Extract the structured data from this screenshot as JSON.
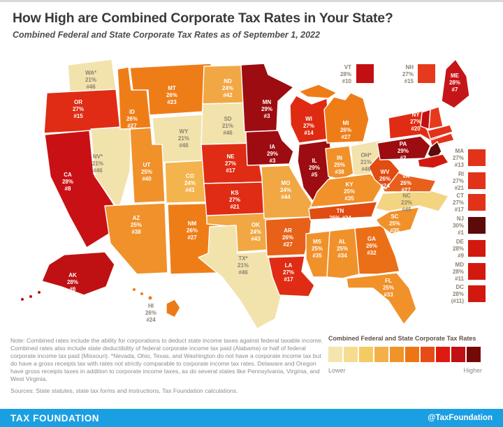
{
  "header": {
    "title": "How High are Combined Corporate Tax Rates in Your State?",
    "subtitle": "Combined Federal and State Corporate Tax Rates as of September 1, 2022"
  },
  "chart_data": {
    "type": "choropleth",
    "title": "Combined Federal and State Corporate Tax Rates as of September 1, 2022",
    "unit": "combined corporate tax rate (percent) and national rank",
    "states": [
      {
        "abbr": "WA",
        "display": "WA*",
        "rate": "21%",
        "rank": "#46",
        "fill": "#F2E2AC",
        "text": "dark"
      },
      {
        "abbr": "OR",
        "display": "OR",
        "rate": "27%",
        "rank": "#15",
        "fill": "#E02C14",
        "text": "light"
      },
      {
        "abbr": "CA",
        "display": "CA",
        "rate": "28%",
        "rank": "#8",
        "fill": "#C91115",
        "text": "light"
      },
      {
        "abbr": "NV",
        "display": "NV*",
        "rate": "21%",
        "rank": "#46",
        "fill": "#F2E2AC",
        "text": "dark"
      },
      {
        "abbr": "ID",
        "display": "ID",
        "rate": "26%",
        "rank": "#27",
        "fill": "#EE7D18",
        "text": "light"
      },
      {
        "abbr": "MT",
        "display": "MT",
        "rate": "26%",
        "rank": "#23",
        "fill": "#EE7D18",
        "text": "light"
      },
      {
        "abbr": "WY",
        "display": "WY",
        "rate": "21%",
        "rank": "#46",
        "fill": "#F2E2AC",
        "text": "dark"
      },
      {
        "abbr": "UT",
        "display": "UT",
        "rate": "25%",
        "rank": "#40",
        "fill": "#F0912A",
        "text": "light"
      },
      {
        "abbr": "CO",
        "display": "CO",
        "rate": "24%",
        "rank": "#41",
        "fill": "#F4B44D",
        "text": "light"
      },
      {
        "abbr": "AZ",
        "display": "AZ",
        "rate": "25%",
        "rank": "#38",
        "fill": "#F0912A",
        "text": "light"
      },
      {
        "abbr": "NM",
        "display": "NM",
        "rate": "26%",
        "rank": "#27",
        "fill": "#EE7D18",
        "text": "light"
      },
      {
        "abbr": "ND",
        "display": "ND",
        "rate": "24%",
        "rank": "#42",
        "fill": "#F1A743",
        "text": "light"
      },
      {
        "abbr": "SD",
        "display": "SD",
        "rate": "21%",
        "rank": "#46",
        "fill": "#F2E2AC",
        "text": "dark"
      },
      {
        "abbr": "NE",
        "display": "NE",
        "rate": "27%",
        "rank": "#17",
        "fill": "#E02C14",
        "text": "light"
      },
      {
        "abbr": "KS",
        "display": "KS",
        "rate": "27%",
        "rank": "#21",
        "fill": "#E02C14",
        "text": "light"
      },
      {
        "abbr": "OK",
        "display": "OK",
        "rate": "24%",
        "rank": "#43",
        "fill": "#F1A743",
        "text": "light"
      },
      {
        "abbr": "TX",
        "display": "TX*",
        "rate": "21%",
        "rank": "#46",
        "fill": "#F2E2AC",
        "text": "dark"
      },
      {
        "abbr": "MN",
        "display": "MN",
        "rate": "29%",
        "rank": "#3",
        "fill": "#9C0C10",
        "text": "light"
      },
      {
        "abbr": "IA",
        "display": "IA",
        "rate": "29%",
        "rank": "#3",
        "fill": "#9C0C10",
        "text": "light"
      },
      {
        "abbr": "MO",
        "display": "MO",
        "rate": "24%",
        "rank": "#44",
        "fill": "#F1A743",
        "text": "light"
      },
      {
        "abbr": "AR",
        "display": "AR",
        "rate": "26%",
        "rank": "#27",
        "fill": "#E76119",
        "text": "light"
      },
      {
        "abbr": "LA",
        "display": "LA",
        "rate": "27%",
        "rank": "#17",
        "fill": "#E02C14",
        "text": "light"
      },
      {
        "abbr": "WI",
        "display": "WI",
        "rate": "27%",
        "rank": "#14",
        "fill": "#DF2B12",
        "text": "light"
      },
      {
        "abbr": "IL",
        "display": "IL",
        "rate": "29%",
        "rank": "#5",
        "fill": "#9C0C10",
        "text": "light"
      },
      {
        "abbr": "IN",
        "display": "IN",
        "rate": "25%",
        "rank": "#38",
        "fill": "#F0912A",
        "text": "light"
      },
      {
        "abbr": "MI",
        "display": "MI",
        "rate": "26%",
        "rank": "#27",
        "fill": "#EE7D18",
        "text": "light"
      },
      {
        "abbr": "OH",
        "display": "OH*",
        "rate": "21%",
        "rank": "#46",
        "fill": "#F2E2AC",
        "text": "dark"
      },
      {
        "abbr": "KY",
        "display": "KY",
        "rate": "25%",
        "rank": "#35",
        "fill": "#F0912A",
        "text": "light"
      },
      {
        "abbr": "TN",
        "display": "TN",
        "rate": "26%",
        "rank": "#24",
        "fill": "#E14C13",
        "text": "light"
      },
      {
        "abbr": "MS",
        "display": "MS",
        "rate": "25%",
        "rank": "#35",
        "fill": "#F0912A",
        "text": "light"
      },
      {
        "abbr": "AL",
        "display": "AL",
        "rate": "25%",
        "rank": "#34",
        "fill": "#F0912A",
        "text": "light"
      },
      {
        "abbr": "GA",
        "display": "GA",
        "rate": "26%",
        "rank": "#32",
        "fill": "#EB6F16",
        "text": "light"
      },
      {
        "abbr": "FL",
        "display": "FL",
        "rate": "25%",
        "rank": "#33",
        "fill": "#F0912A",
        "text": "light"
      },
      {
        "abbr": "SC",
        "display": "SC",
        "rate": "25%",
        "rank": "#35",
        "fill": "#F0912A",
        "text": "light"
      },
      {
        "abbr": "NC",
        "display": "NC",
        "rate": "23%",
        "rank": "#45",
        "fill": "#F3D480",
        "text": "dark"
      },
      {
        "abbr": "VA",
        "display": "VA",
        "rate": "26%",
        "rank": "#27",
        "fill": "#E7611C",
        "text": "light"
      },
      {
        "abbr": "WV",
        "display": "WV",
        "rate": "26%",
        "rank": "#24",
        "fill": "#E14C13",
        "text": "light"
      },
      {
        "abbr": "PA",
        "display": "PA",
        "rate": "29%",
        "rank": "#2",
        "fill": "#9C0C10",
        "text": "light"
      },
      {
        "abbr": "NY",
        "display": "NY",
        "rate": "27%",
        "rank": "#20",
        "fill": "#E02C14",
        "text": "light"
      },
      {
        "abbr": "ME",
        "display": "ME",
        "rate": "28%",
        "rank": "#7",
        "fill": "#C61519",
        "text": "light"
      },
      {
        "abbr": "VT",
        "display": "VT",
        "rate": "28%",
        "rank": "#10",
        "fill": "#C30F12",
        "text": "dark"
      },
      {
        "abbr": "NH",
        "display": "NH",
        "rate": "27%",
        "rank": "#15",
        "fill": "#E63A1D",
        "text": "dark"
      },
      {
        "abbr": "MA",
        "display": "MA",
        "rate": "27%",
        "rank": "#13",
        "fill": "#E2331A",
        "text": "dark"
      },
      {
        "abbr": "RI",
        "display": "RI",
        "rate": "27%",
        "rank": "#21",
        "fill": "#E2331A",
        "text": "dark"
      },
      {
        "abbr": "CT",
        "display": "CT",
        "rate": "27%",
        "rank": "#17",
        "fill": "#E2331A",
        "text": "dark"
      },
      {
        "abbr": "NJ",
        "display": "NJ",
        "rate": "30%",
        "rank": "#1",
        "fill": "#5C0A0A",
        "text": "dark"
      },
      {
        "abbr": "DE",
        "display": "DE",
        "rate": "28%",
        "rank": "#9",
        "fill": "#D2190F",
        "text": "dark"
      },
      {
        "abbr": "MD",
        "display": "MD",
        "rate": "28%",
        "rank": "#11",
        "fill": "#D2190F",
        "text": "dark"
      },
      {
        "abbr": "DC",
        "display": "DC",
        "rate": "28%",
        "rank": "(#11)",
        "fill": "#D2190F",
        "text": "dark"
      },
      {
        "abbr": "AK",
        "display": "AK",
        "rate": "28%",
        "rank": "#6",
        "fill": "#BF1113",
        "text": "light"
      },
      {
        "abbr": "HI",
        "display": "HI",
        "rate": "26%",
        "rank": "#24",
        "fill": "#ED7A1A",
        "text": "dark"
      }
    ]
  },
  "legend": {
    "title": "Combined Federal and State Corporate Tax Rates",
    "lower": "Lower",
    "higher": "Higher",
    "swatches": [
      "#F4E4AE",
      "#F7DB90",
      "#F6CA62",
      "#F3B049",
      "#F09329",
      "#EE7514",
      "#E74C16",
      "#DE1B0E",
      "#C11013",
      "#740A08"
    ]
  },
  "notes": {
    "note": "Note: Combined rates include the ability for corporations to deduct state income taxes against federal taxable income. Combined rates also include state deductibility of federal corporate income tax paid (Alabama) or half of federal corporate income tax paid (Missouri). *Nevada, Ohio, Texas, and Washington do not have a corporate income tax but do have a gross receipts tax with rates not strictly comparable to corporate income tax rates. Delaware and Oregon have gross receipts taxes in addition to corporate income taxes, as do several states like Pennsylvania, Virginia, and West Virginia.",
    "sources": "Sources: State statutes, state tax forms and instructions, Tax Foundation calculations."
  },
  "footer": {
    "brand": "TAX FOUNDATION",
    "handle": "@TaxFoundation"
  }
}
